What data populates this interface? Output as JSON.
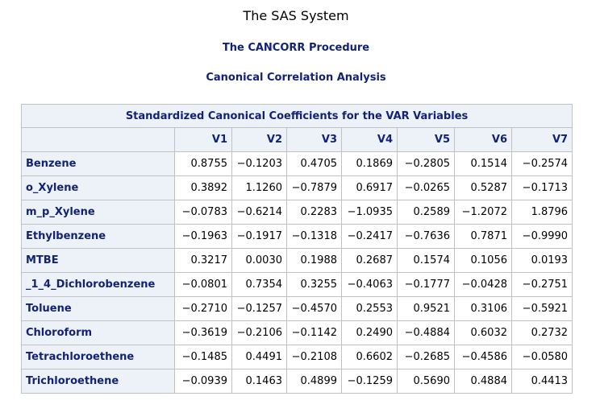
{
  "titles": {
    "system": "The SAS System",
    "procedure": "The CANCORR Procedure",
    "analysis": "Canonical Correlation Analysis"
  },
  "table": {
    "caption": "Standardized Canonical Coefficients for the VAR Variables",
    "columns": [
      "V1",
      "V2",
      "V3",
      "V4",
      "V5",
      "V6",
      "V7"
    ],
    "rows": [
      {
        "label": "Benzene",
        "values": [
          "0.8755",
          "−0.1203",
          "0.4705",
          "0.1869",
          "−0.2805",
          "0.1514",
          "−0.2574"
        ]
      },
      {
        "label": "o_Xylene",
        "values": [
          "0.3892",
          "1.1260",
          "−0.7879",
          "0.6917",
          "−0.0265",
          "0.5287",
          "−0.1713"
        ]
      },
      {
        "label": "m_p_Xylene",
        "values": [
          "−0.0783",
          "−0.6214",
          "0.2283",
          "−1.0935",
          "0.2589",
          "−1.2072",
          "1.8796"
        ]
      },
      {
        "label": "Ethylbenzene",
        "values": [
          "−0.1963",
          "−0.1917",
          "−0.1318",
          "−0.2417",
          "−0.7636",
          "0.7871",
          "−0.9990"
        ]
      },
      {
        "label": "MTBE",
        "values": [
          "0.3217",
          "0.0030",
          "0.1988",
          "0.2687",
          "0.1574",
          "0.1056",
          "0.0193"
        ]
      },
      {
        "label": "_1_4_Dichlorobenzene",
        "values": [
          "−0.0801",
          "0.7354",
          "0.3255",
          "−0.4063",
          "−0.1777",
          "−0.0428",
          "−0.2751"
        ]
      },
      {
        "label": "Toluene",
        "values": [
          "−0.2710",
          "−0.1257",
          "−0.4570",
          "0.2553",
          "0.9521",
          "0.3106",
          "−0.5921"
        ]
      },
      {
        "label": "Chloroform",
        "values": [
          "−0.3619",
          "−0.2106",
          "−0.1142",
          "0.2490",
          "−0.4884",
          "0.6032",
          "0.2732"
        ]
      },
      {
        "label": "Tetrachloroethene",
        "values": [
          "−0.1485",
          "0.4491",
          "−0.2108",
          "0.6602",
          "−0.2685",
          "−0.4586",
          "−0.0580"
        ]
      },
      {
        "label": "Trichloroethene",
        "values": [
          "−0.0939",
          "0.1463",
          "0.4899",
          "−0.1259",
          "0.5690",
          "0.4884",
          "0.4413"
        ]
      }
    ]
  },
  "colors": {
    "header_bg": "#edf2f9",
    "header_text": "#112277",
    "border": "#c1c1c1"
  }
}
